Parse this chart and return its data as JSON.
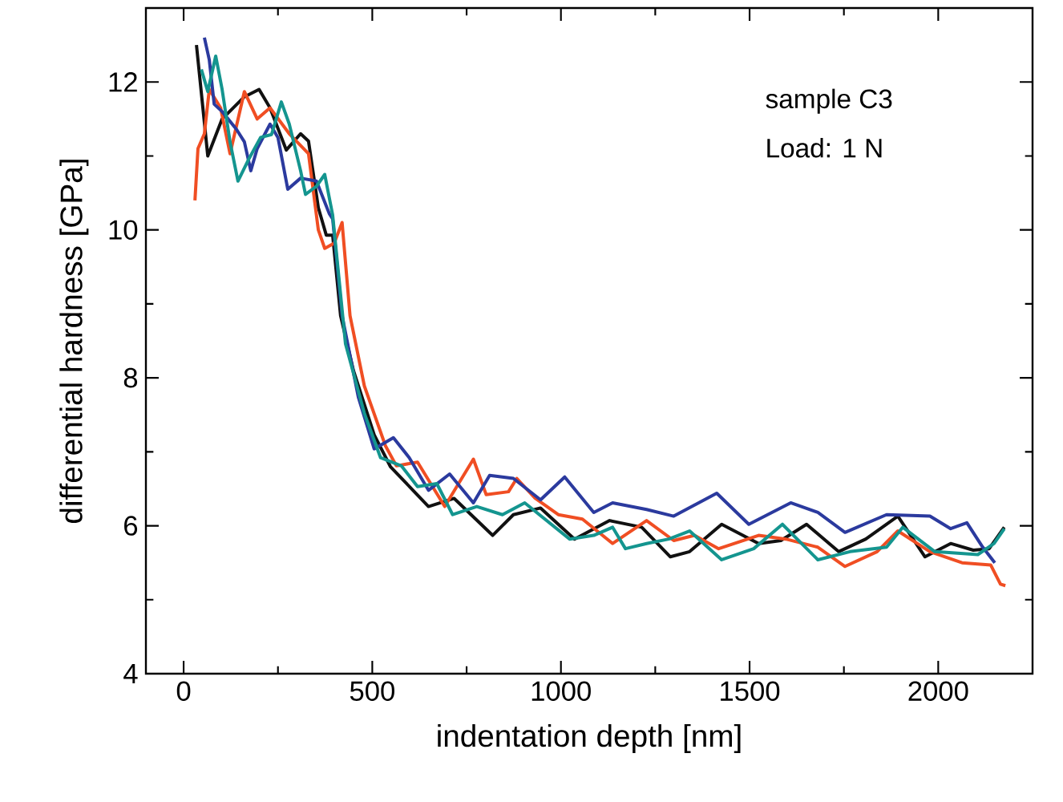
{
  "chart_data": {
    "type": "line",
    "xlabel": "indentation depth [nm]",
    "ylabel": "differential hardness [GPa]",
    "annotations": [
      "sample C3",
      "Load: 1 N"
    ],
    "xlim": [
      -100,
      2250
    ],
    "ylim": [
      4,
      13
    ],
    "xticks": [
      0,
      500,
      1000,
      1500,
      2000
    ],
    "yticks": [
      4,
      6,
      8,
      10,
      12
    ],
    "marker": "none",
    "line_style": "solid",
    "series": [
      {
        "color": "#111111",
        "x": [
          34,
          64,
          102,
          161,
          200,
          229,
          272,
          310,
          331,
          357,
          378,
          395,
          416,
          450,
          505,
          548,
          649,
          717,
          819,
          874,
          946,
          1036,
          1129,
          1214,
          1290,
          1341,
          1426,
          1524,
          1583,
          1651,
          1736,
          1808,
          1893,
          1965,
          2033,
          2093,
          2135,
          2175
        ],
        "values": [
          12.5,
          11.0,
          11.5,
          11.8,
          11.9,
          11.65,
          11.08,
          11.3,
          11.2,
          10.3,
          9.93,
          9.93,
          8.84,
          8.1,
          7.23,
          6.8,
          6.26,
          6.37,
          5.87,
          6.15,
          6.24,
          5.82,
          6.07,
          5.98,
          5.58,
          5.65,
          6.02,
          5.76,
          5.8,
          6.02,
          5.65,
          5.82,
          6.13,
          5.58,
          5.76,
          5.67,
          5.69,
          5.98
        ]
      },
      {
        "color": "#f04e23",
        "x": [
          30,
          38,
          55,
          68,
          98,
          123,
          161,
          195,
          229,
          280,
          331,
          357,
          374,
          399,
          420,
          441,
          479,
          535,
          564,
          620,
          692,
          768,
          802,
          861,
          883,
          930,
          993,
          1057,
          1137,
          1227,
          1299,
          1354,
          1418,
          1524,
          1596,
          1681,
          1753,
          1838,
          1893,
          1978,
          2063,
          2139,
          2165,
          2178
        ],
        "values": [
          10.4,
          11.1,
          11.3,
          11.9,
          11.65,
          11.03,
          11.87,
          11.5,
          11.65,
          11.3,
          11.03,
          10.0,
          9.75,
          9.82,
          10.1,
          8.84,
          7.89,
          7.08,
          6.81,
          6.86,
          6.26,
          6.9,
          6.42,
          6.46,
          6.64,
          6.38,
          6.15,
          6.09,
          5.76,
          6.07,
          5.8,
          5.87,
          5.69,
          5.87,
          5.82,
          5.71,
          5.45,
          5.65,
          5.93,
          5.65,
          5.5,
          5.47,
          5.21,
          5.19
        ]
      },
      {
        "color": "#2b3a9e",
        "x": [
          55,
          68,
          81,
          102,
          140,
          161,
          178,
          195,
          229,
          250,
          276,
          310,
          352,
          386,
          395,
          420,
          463,
          505,
          556,
          598,
          649,
          705,
          768,
          811,
          874,
          946,
          1010,
          1087,
          1137,
          1227,
          1299,
          1413,
          1498,
          1609,
          1681,
          1753,
          1863,
          1978,
          2033,
          2076,
          2118,
          2150
        ],
        "values": [
          12.6,
          12.3,
          11.7,
          11.6,
          11.36,
          11.19,
          10.8,
          11.1,
          11.43,
          11.25,
          10.55,
          10.7,
          10.66,
          10.22,
          10.15,
          8.84,
          7.74,
          7.04,
          7.19,
          6.92,
          6.48,
          6.7,
          6.31,
          6.68,
          6.64,
          6.35,
          6.66,
          6.18,
          6.31,
          6.22,
          6.13,
          6.44,
          6.02,
          6.31,
          6.18,
          5.91,
          6.15,
          6.13,
          5.96,
          6.04,
          5.71,
          5.5
        ]
      },
      {
        "color": "#14958f",
        "x": [
          47,
          64,
          85,
          102,
          123,
          144,
          174,
          204,
          233,
          259,
          280,
          310,
          323,
          352,
          374,
          395,
          429,
          479,
          522,
          577,
          620,
          671,
          713,
          777,
          845,
          904,
          1023,
          1087,
          1137,
          1171,
          1227,
          1286,
          1341,
          1426,
          1511,
          1587,
          1681,
          1766,
          1863,
          1906,
          1991,
          2105,
          2148,
          2175
        ],
        "values": [
          12.17,
          11.87,
          12.35,
          11.9,
          11.19,
          10.66,
          10.97,
          11.25,
          11.29,
          11.73,
          11.43,
          10.8,
          10.48,
          10.59,
          10.75,
          10.2,
          8.46,
          7.52,
          6.92,
          6.81,
          6.53,
          6.57,
          6.15,
          6.26,
          6.15,
          6.31,
          5.82,
          5.87,
          5.98,
          5.69,
          5.76,
          5.82,
          5.93,
          5.54,
          5.69,
          6.02,
          5.54,
          5.65,
          5.71,
          5.98,
          5.65,
          5.61,
          5.76,
          5.96
        ]
      }
    ]
  }
}
